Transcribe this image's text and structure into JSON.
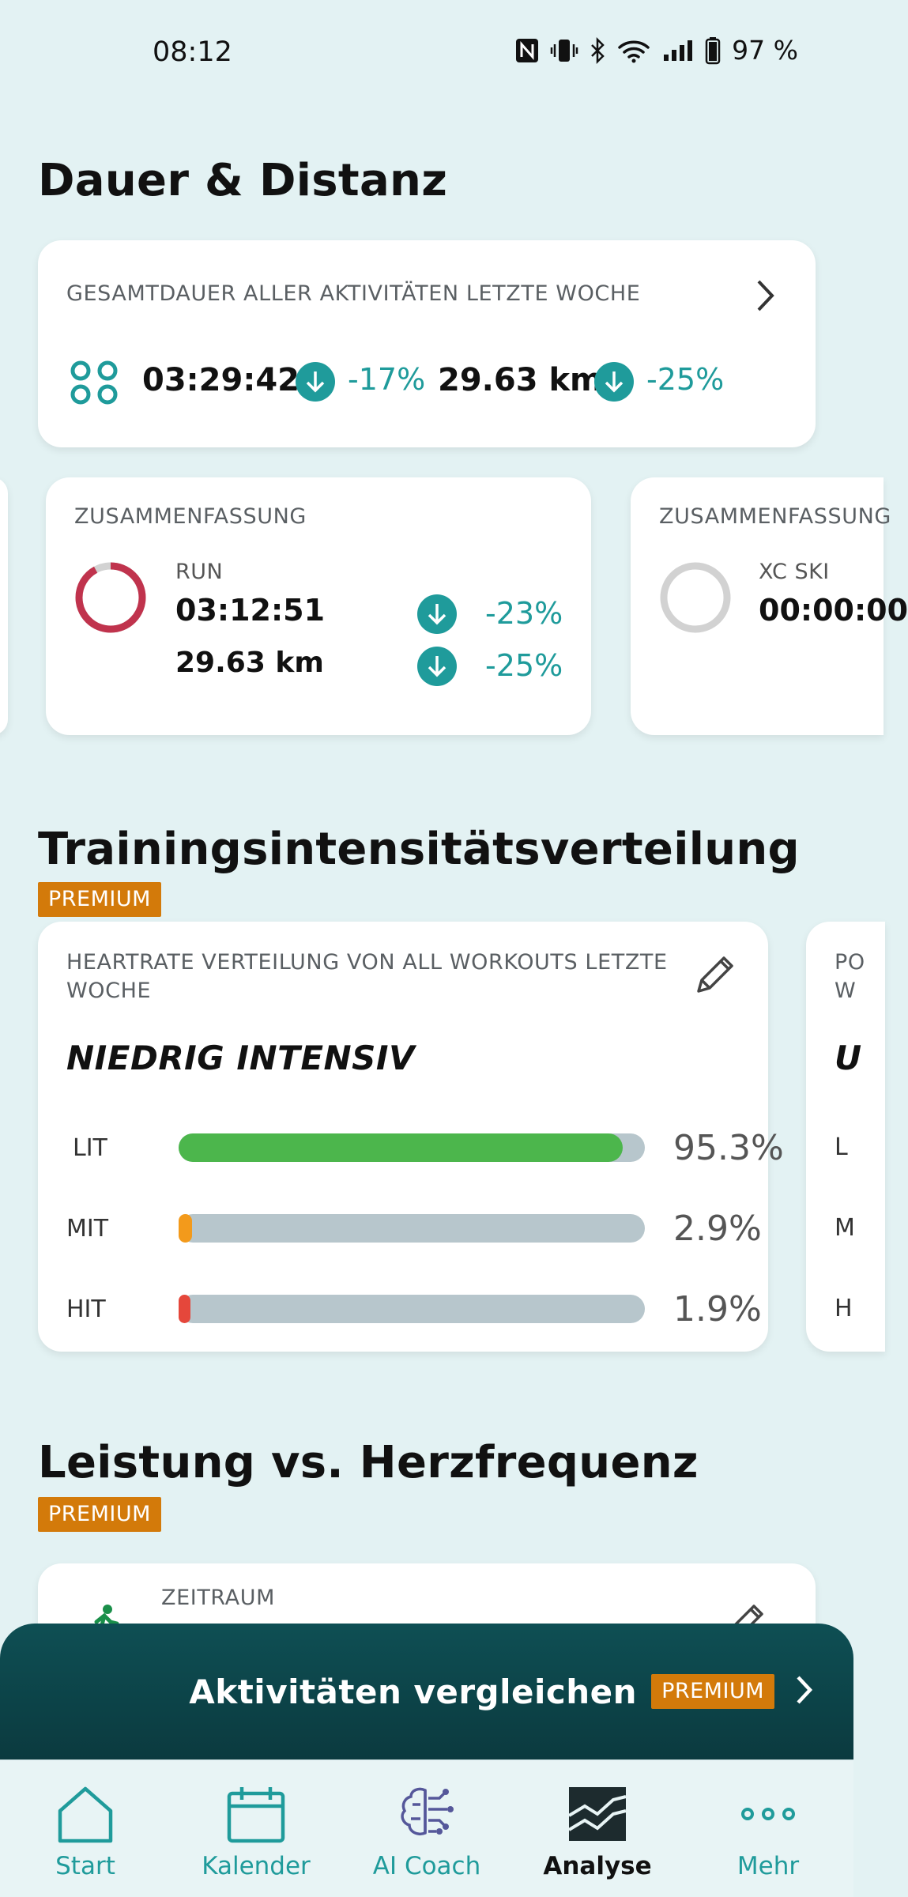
{
  "status_bar": {
    "time": "08:12",
    "battery": "97 %"
  },
  "duration_section": {
    "title": "Dauer & Distanz",
    "total_card": {
      "caption": "GESAMTDAUER ALLER AKTIVITÄTEN LETZTE WOCHE",
      "duration": "03:29:42",
      "duration_change": "-17%",
      "distance": "29.63 km",
      "distance_change": "-25%"
    },
    "summary_cards": [
      {
        "caption": "ZUSAMMENFASSUNG",
        "sport": "RUN",
        "duration": "03:12:51",
        "duration_change": "-23%",
        "distance": "29.63 km",
        "distance_change": "-25%",
        "ring_color": "#c0334d",
        "ring_fraction": 0.92
      },
      {
        "caption": "ZUSAMMENFASSUNG",
        "sport": "XC SKI",
        "duration": "00:00:00"
      }
    ]
  },
  "intensity_section": {
    "title": "Trainingsintensitätsverteilung",
    "premium": "PREMIUM",
    "card": {
      "caption": "HEARTRATE VERTEILUNG VON ALL WORKOUTS LETZTE WOCHE",
      "headline": "NIEDRIG INTENSIV",
      "rows": [
        {
          "label": "LIT",
          "value": "95.3%",
          "fraction": 0.953,
          "color": "#4cb64c"
        },
        {
          "label": "MIT",
          "value": "2.9%",
          "fraction": 0.029,
          "color": "#f39a1b"
        },
        {
          "label": "HIT",
          "value": "1.9%",
          "fraction": 0.019,
          "color": "#e5473b"
        }
      ]
    },
    "peek_card": {
      "caption_line1": "PO",
      "caption_line2": "W",
      "headline": "U",
      "rows": [
        "L",
        "M",
        "H"
      ]
    }
  },
  "power_section": {
    "title": "Leistung vs. Herzfrequenz",
    "premium": "PREMIUM",
    "card_caption": "ZEITRAUM"
  },
  "compare_bar": {
    "label": "Aktivitäten vergleichen",
    "premium": "PREMIUM"
  },
  "nav": [
    {
      "label": "Start",
      "icon": "home-icon"
    },
    {
      "label": "Kalender",
      "icon": "calendar-icon"
    },
    {
      "label": "AI Coach",
      "icon": "brain-icon"
    },
    {
      "label": "Analyse",
      "icon": "chart-icon",
      "active": true
    },
    {
      "label": "Mehr",
      "icon": "more-icon"
    }
  ],
  "colors": {
    "teal": "#1f9b9b",
    "premium": "#d37a0a",
    "background": "#e3f2f3"
  }
}
